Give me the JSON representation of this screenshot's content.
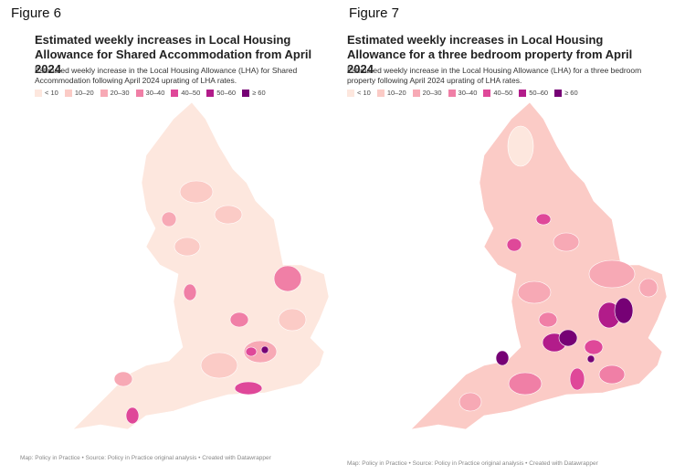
{
  "figures": [
    {
      "label": "Figure 6",
      "title": "Estimated weekly increases in Local Housing Allowance for Shared Accommodation from April 2024",
      "subtitle": "Estimated weekly increase in the Local Housing Allowance (LHA) for Shared Accommodation following April 2024 uprating of LHA rates.",
      "legend": [
        {
          "label": "< 10",
          "color": "#fde7de"
        },
        {
          "label": "10–20",
          "color": "#fbcbc6"
        },
        {
          "label": "20–30",
          "color": "#f7a9b5"
        },
        {
          "label": "30–40",
          "color": "#f07fa6"
        },
        {
          "label": "40–50",
          "color": "#df4899"
        },
        {
          "label": "50–60",
          "color": "#b21c8a"
        },
        {
          "label": "≥ 60",
          "color": "#760175"
        }
      ],
      "footer": "Map: Policy in Practice • Source: Policy in Practice original analysis • Created with Datawrapper"
    },
    {
      "label": "Figure 7",
      "title": "Estimated weekly increases in Local Housing Allowance for a three bedroom property from April 2024",
      "subtitle": "Estimated weekly increase in the Local Housing Allowance (LHA) for a three bedroom property following April 2024 uprating of LHA rates.",
      "legend": [
        {
          "label": "< 10",
          "color": "#fde7de"
        },
        {
          "label": "10–20",
          "color": "#fbcbc6"
        },
        {
          "label": "20–30",
          "color": "#f7a9b5"
        },
        {
          "label": "30–40",
          "color": "#f07fa6"
        },
        {
          "label": "40–50",
          "color": "#df4899"
        },
        {
          "label": "50–60",
          "color": "#b21c8a"
        },
        {
          "label": "≥ 60",
          "color": "#760175"
        }
      ],
      "footer": "Map: Policy in Practice • Source: Policy in Practice original analysis • Created with Datawrapper"
    }
  ]
}
